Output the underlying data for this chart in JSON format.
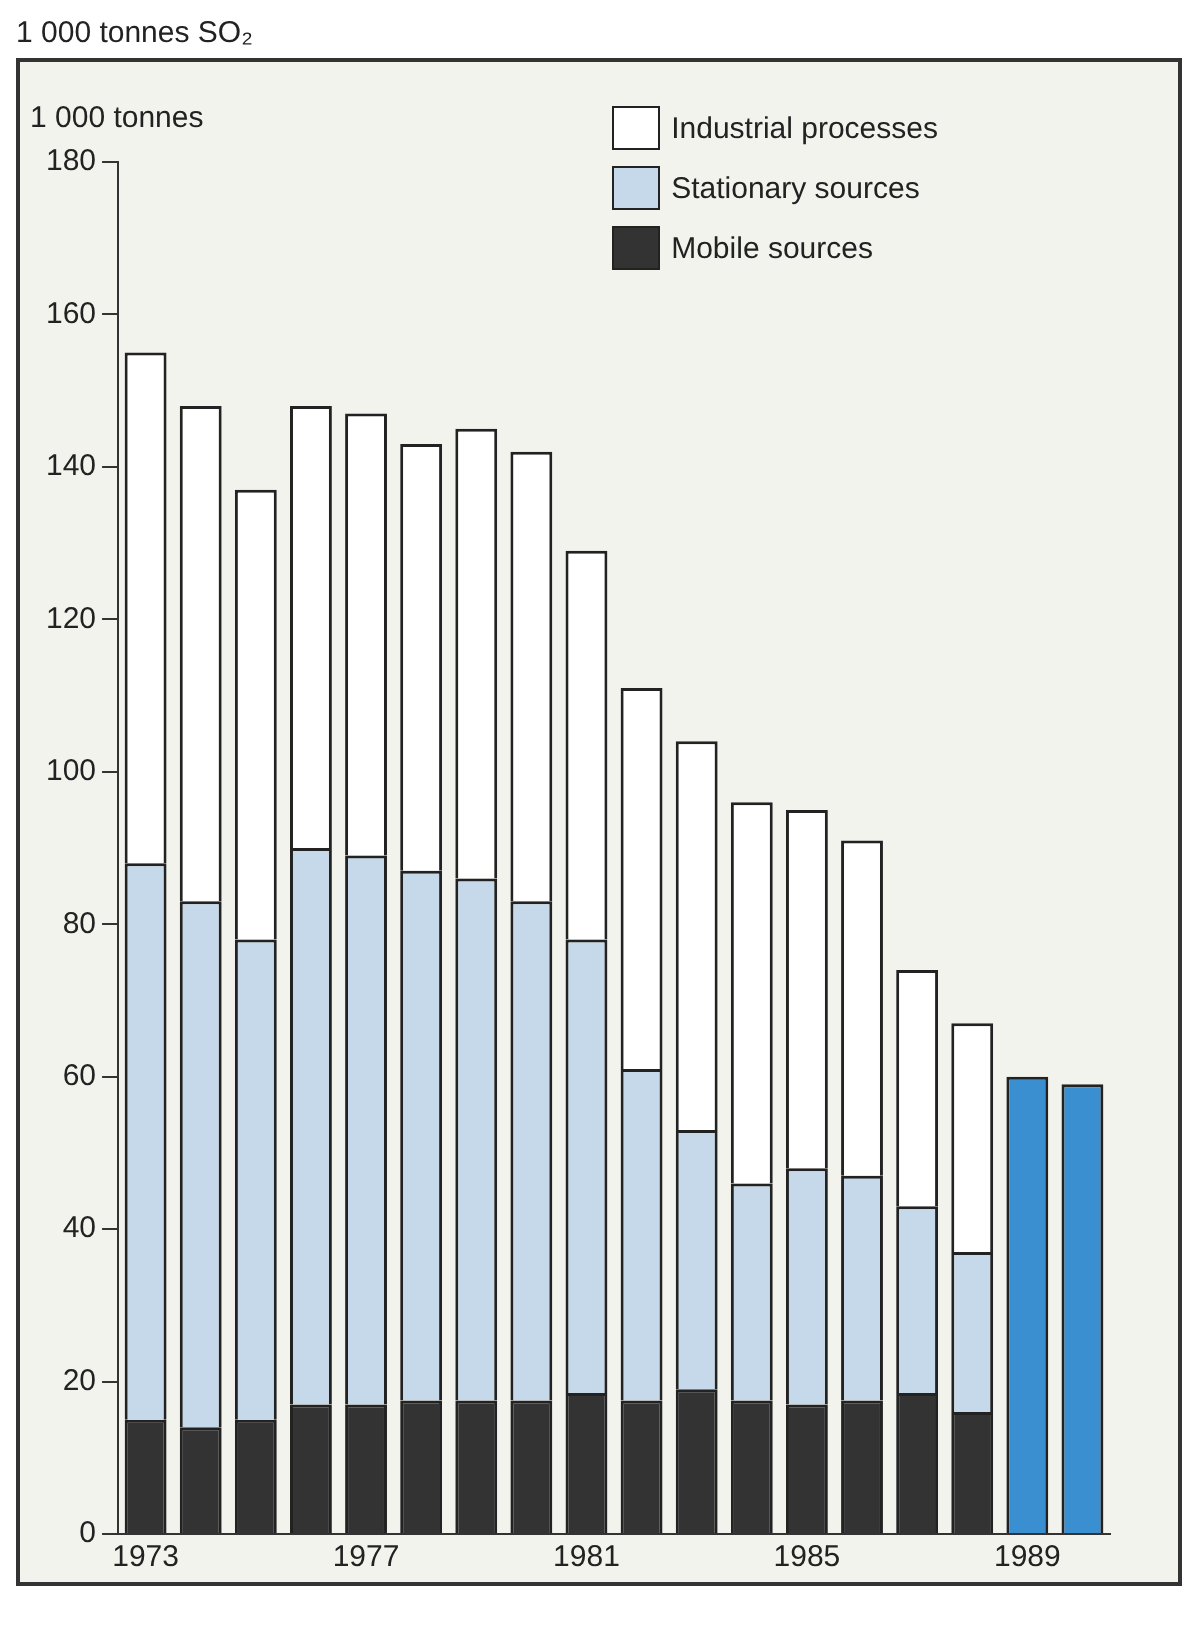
{
  "chart_data": {
    "type": "bar",
    "title": "1 000 tonnes SO₂",
    "ylabel": "1 000 tonnes",
    "categories": [
      "1973",
      null,
      null,
      null,
      "1977",
      null,
      null,
      null,
      "1981",
      null,
      null,
      null,
      "1985",
      null,
      null,
      null,
      "1989",
      null
    ],
    "stacked": true,
    "series": [
      {
        "name": "Mobile sources",
        "color": "#333333",
        "values": [
          15,
          14,
          15,
          17,
          17,
          17.5,
          17.5,
          17.5,
          18.5,
          17.5,
          19,
          17.5,
          17,
          17.5,
          18.5,
          16,
          null,
          null
        ]
      },
      {
        "name": "Stationary sources",
        "color": "#c5d9ea",
        "values": [
          73,
          69,
          63,
          73,
          72,
          69.5,
          68.5,
          65.5,
          59.5,
          43.5,
          34,
          28.5,
          31,
          29.5,
          24.5,
          21,
          null,
          null
        ]
      },
      {
        "name": "Industrial processes",
        "color": "#ffffff",
        "values": [
          67,
          65,
          59,
          58,
          58,
          56,
          59,
          59,
          51,
          50,
          51,
          50,
          47,
          44,
          31,
          30,
          null,
          null
        ]
      },
      {
        "color": "#3a8fd0",
        "values": [
          null,
          null,
          null,
          null,
          null,
          null,
          null,
          null,
          null,
          null,
          null,
          null,
          null,
          null,
          null,
          null,
          60,
          59
        ]
      }
    ],
    "ylim": [
      0,
      180
    ],
    "yticks": [
      0,
      20,
      40,
      60,
      80,
      100,
      120,
      140,
      160,
      180
    ],
    "grid": false,
    "legend": "top right"
  }
}
